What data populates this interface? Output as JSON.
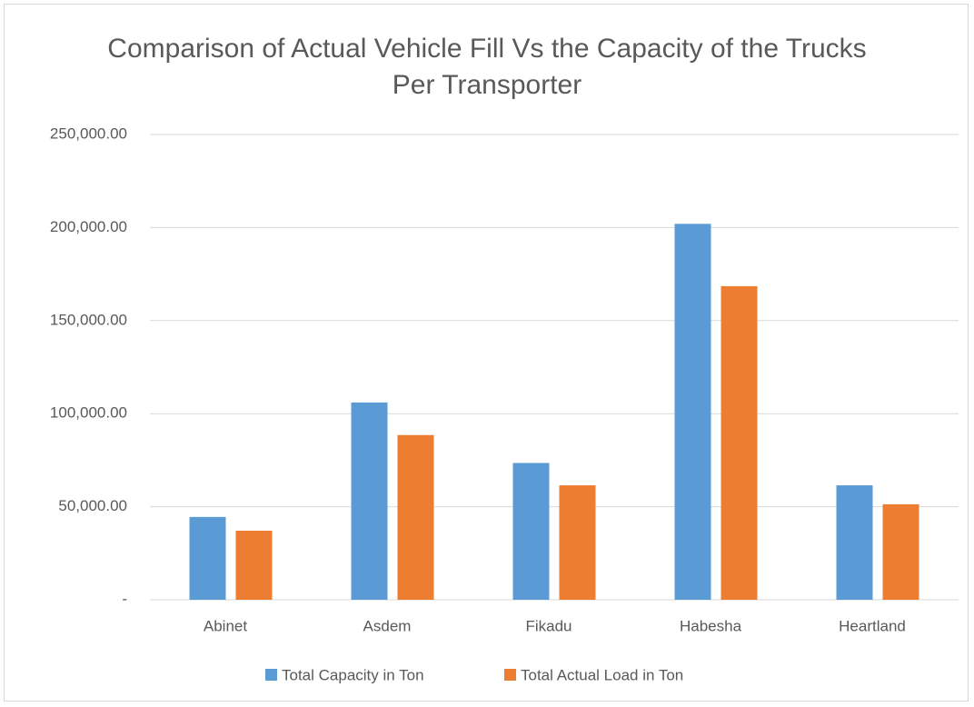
{
  "chart_data": {
    "type": "bar",
    "title": "Comparison of Actual Vehicle Fill Vs the Capacity of the Trucks Per Transporter",
    "categories": [
      "Abinet",
      "Asdem",
      "Fikadu",
      "Habesha",
      "Heartland"
    ],
    "series": [
      {
        "name": "Total Capacity in Ton",
        "color": "#5b9bd5",
        "values": [
          44500,
          106000,
          73500,
          202000,
          61500
        ]
      },
      {
        "name": "Total Actual Load in Ton",
        "color": "#ed7d31",
        "values": [
          37100,
          88500,
          61500,
          168500,
          51300
        ]
      }
    ],
    "ylim": [
      0,
      250000
    ],
    "yticks": [
      {
        "value": 0,
        "label": "-"
      },
      {
        "value": 50000,
        "label": "50,000.00"
      },
      {
        "value": 100000,
        "label": "100,000.00"
      },
      {
        "value": 150000,
        "label": "150,000.00"
      },
      {
        "value": 200000,
        "label": "200,000.00"
      },
      {
        "value": 250000,
        "label": "250,000.00"
      }
    ],
    "grid": true,
    "legend": "bottom"
  }
}
